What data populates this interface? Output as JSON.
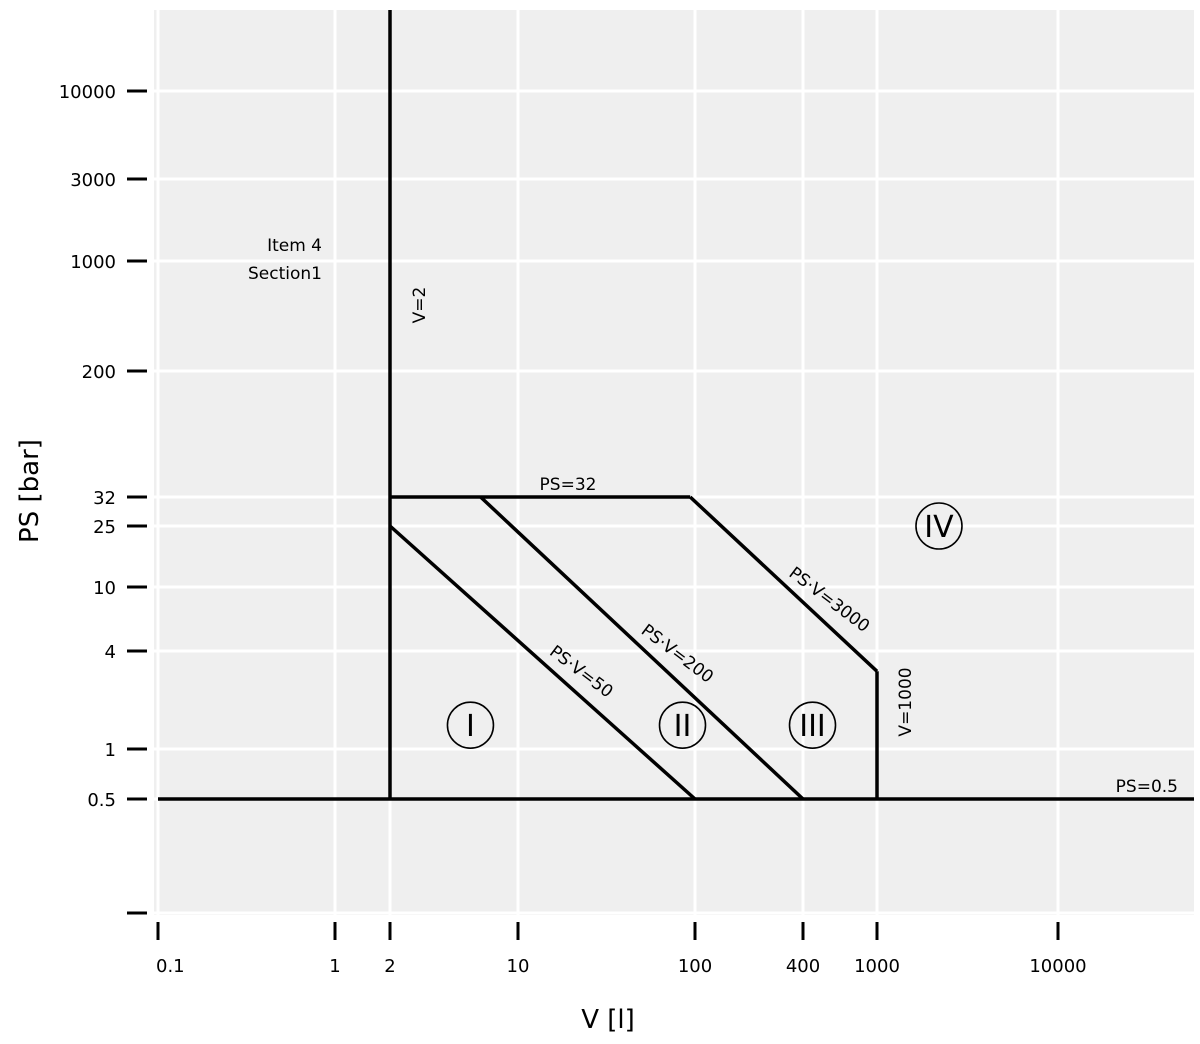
{
  "chart_data": {
    "type": "line",
    "title": "",
    "xlabel": "V [l]",
    "ylabel": "PS [bar]",
    "xscale": "log",
    "yscale": "log",
    "background": "#efefef",
    "grid_color": "#ffffff",
    "line_color": "#000000",
    "grid": true,
    "x_ticks": [
      {
        "value": 0.1,
        "label": "0.1"
      },
      {
        "value": 1,
        "label": "1"
      },
      {
        "value": 2,
        "label": "2"
      },
      {
        "value": 10,
        "label": "10"
      },
      {
        "value": 100,
        "label": "100"
      },
      {
        "value": 400,
        "label": "400"
      },
      {
        "value": 1000,
        "label": "1000"
      },
      {
        "value": 10000,
        "label": "10000"
      }
    ],
    "y_ticks": [
      {
        "value": 0.1,
        "label": ""
      },
      {
        "value": 0.5,
        "label": "0.5"
      },
      {
        "value": 1,
        "label": "1"
      },
      {
        "value": 4,
        "label": "4"
      },
      {
        "value": 10,
        "label": "10"
      },
      {
        "value": 25,
        "label": "25"
      },
      {
        "value": 32,
        "label": "32"
      },
      {
        "value": 200,
        "label": "200"
      },
      {
        "value": 1000,
        "label": "1000"
      },
      {
        "value": 3000,
        "label": "3000"
      },
      {
        "value": 10000,
        "label": "10000"
      }
    ],
    "boundaries": [
      {
        "label": "V=2",
        "points": [
          [
            2,
            0.5
          ],
          [
            2,
            30000
          ]
        ]
      },
      {
        "label": "PS=0.5",
        "points": [
          [
            0.1,
            0.5
          ],
          [
            45000,
            0.5
          ]
        ]
      },
      {
        "label": "PS=32",
        "points": [
          [
            2,
            32
          ],
          [
            94,
            32
          ]
        ]
      },
      {
        "label": "PS·V=50",
        "points": [
          [
            2,
            25
          ],
          [
            100,
            0.5
          ]
        ]
      },
      {
        "label": "PS·V=200",
        "points": [
          [
            6.25,
            32
          ],
          [
            400,
            0.5
          ]
        ]
      },
      {
        "label": "PS·V=3000",
        "points": [
          [
            94,
            32
          ],
          [
            1000,
            3
          ]
        ]
      },
      {
        "label": "V=1000",
        "points": [
          [
            1000,
            3
          ],
          [
            1000,
            0.5
          ]
        ]
      }
    ],
    "regions": [
      {
        "label": "I",
        "x": 5.5,
        "y": 1.4
      },
      {
        "label": "II",
        "x": 85,
        "y": 1.4
      },
      {
        "label": "III",
        "x": 450,
        "y": 1.4
      },
      {
        "label": "IV",
        "x": 2200,
        "y": 25
      }
    ],
    "annotations": [
      {
        "text": "Item 4",
        "x": 0.7,
        "y": 1250
      },
      {
        "text": "Section1",
        "x": 0.7,
        "y": 850
      }
    ]
  }
}
